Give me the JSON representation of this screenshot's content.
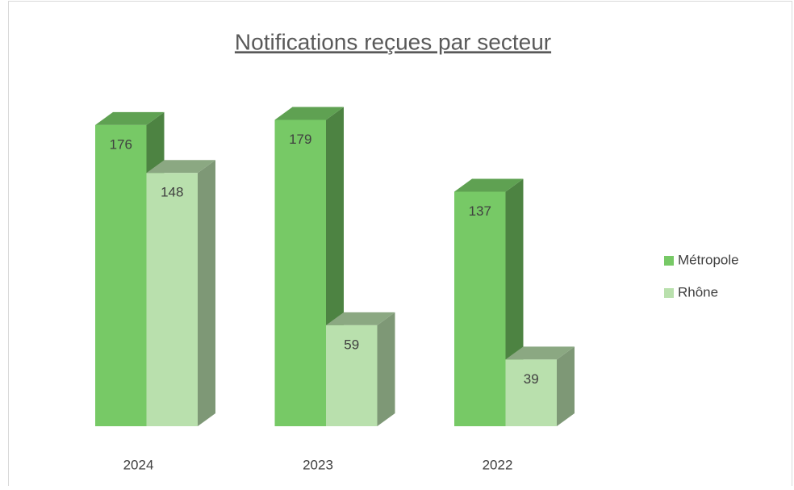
{
  "chart_data": {
    "type": "bar3d",
    "title": "Notifications reçues par secteur",
    "categories": [
      "2024",
      "2023",
      "2022"
    ],
    "series": [
      {
        "name": "Métropole",
        "color": "#77c966",
        "values": [
          176,
          179,
          137
        ]
      },
      {
        "name": "Rhône",
        "color": "#b9e0ad",
        "values": [
          148,
          59,
          39
        ]
      }
    ],
    "legend": "right"
  }
}
